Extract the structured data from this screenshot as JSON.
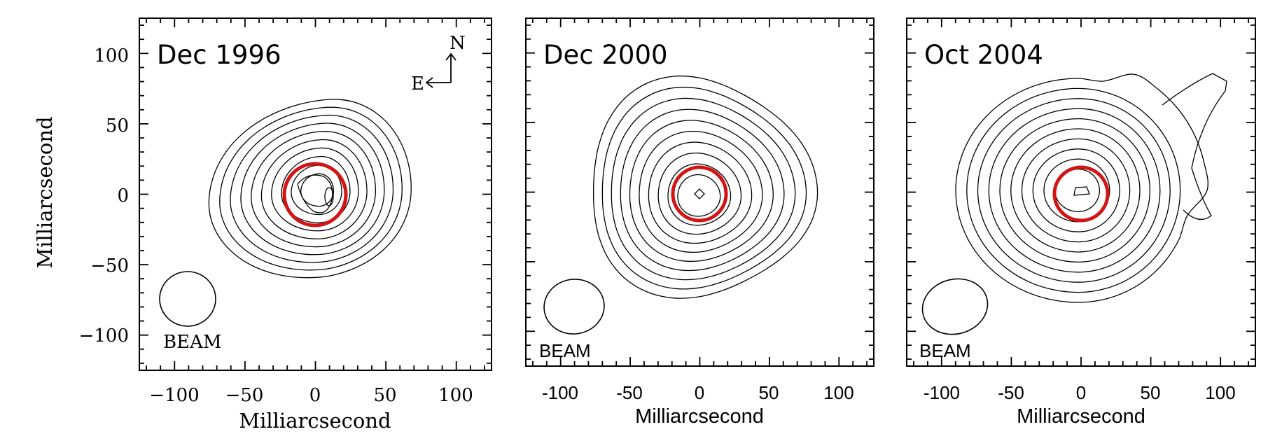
{
  "figure": {
    "ylabel": "Milliarcsecond",
    "units": "Milliarcsecond",
    "axis_range": [
      -125,
      125
    ],
    "tick_values": [
      -100,
      -50,
      0,
      50,
      100
    ],
    "compass": {
      "north": "N",
      "east": "E"
    },
    "beam_label": "BEAM",
    "marker_color": "#d21414"
  },
  "panels": [
    {
      "title": "Dec 1996",
      "xlabel": "Milliarcsecond",
      "xticks": [
        "−100",
        "−50",
        "0",
        "50",
        "100"
      ],
      "yticks": [
        "100",
        "50",
        "0",
        "−50",
        "−100"
      ],
      "beam_label": "BEAM",
      "font": "serif",
      "has_compass": true,
      "has_ylabel": true,
      "contour_levels": 10
    },
    {
      "title": "Dec 2000",
      "xlabel": "Milliarcsecond",
      "xticks": [
        "-100",
        "-50",
        "0",
        "50",
        "100"
      ],
      "beam_label": "BEAM",
      "font": "sans",
      "has_compass": false,
      "has_ylabel": false,
      "contour_levels": 10
    },
    {
      "title": "Oct 2004",
      "xlabel": "Milliarcsecond",
      "xticks": [
        "-100",
        "-50",
        "0",
        "50",
        "100"
      ],
      "beam_label": "BEAM",
      "font": "sans",
      "has_compass": false,
      "has_ylabel": false,
      "contour_levels": 10
    }
  ]
}
